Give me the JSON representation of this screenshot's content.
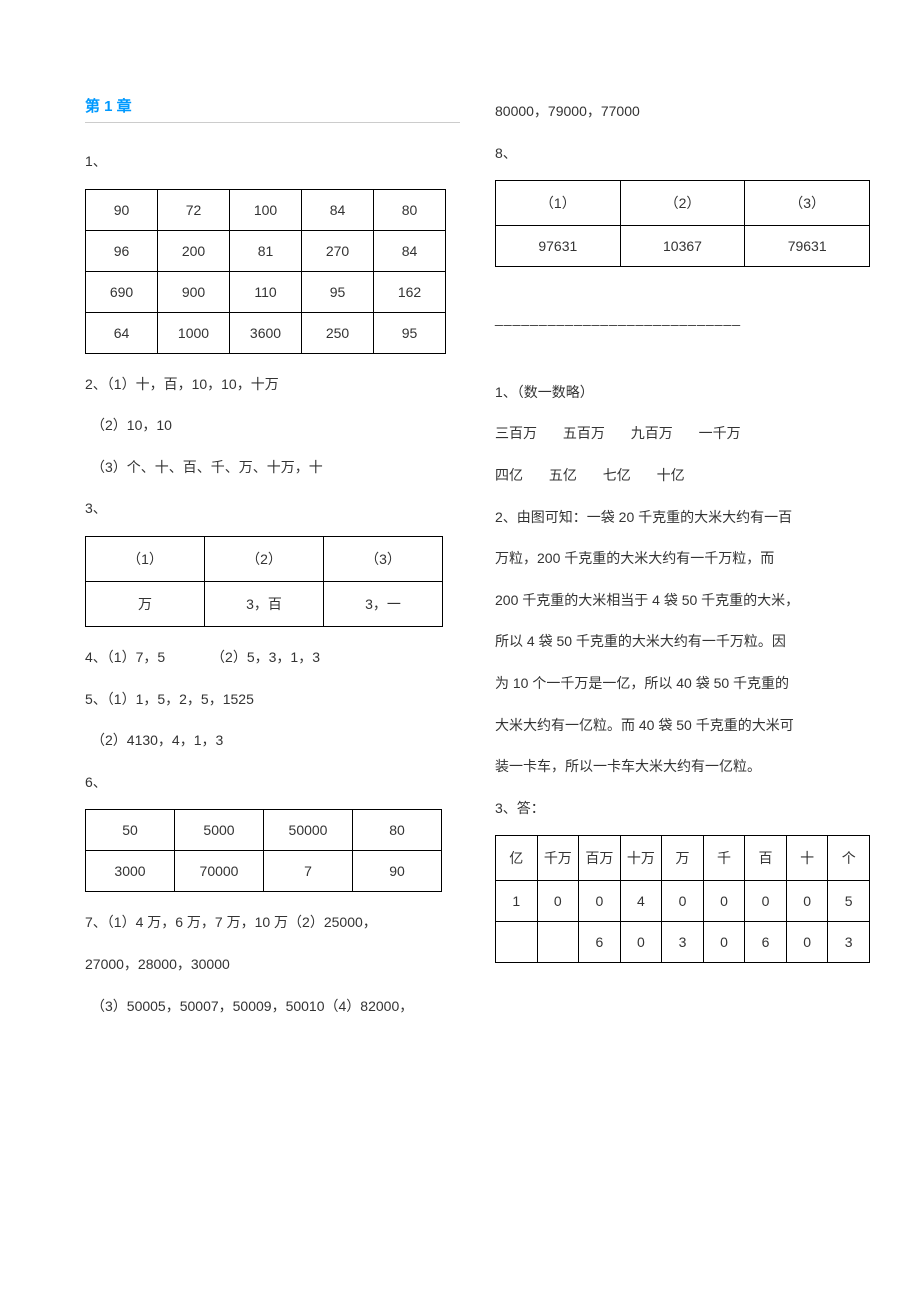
{
  "chapter_title": "第 1 章",
  "left": {
    "q1_label": "1、",
    "table1": {
      "rows": [
        [
          "90",
          "72",
          "100",
          "84",
          "80"
        ],
        [
          "96",
          "200",
          "81",
          "270",
          "84"
        ],
        [
          "690",
          "900",
          "110",
          "95",
          "162"
        ],
        [
          "64",
          "1000",
          "3600",
          "250",
          "95"
        ]
      ]
    },
    "q2_line1": "2、（1）十，百，10，10，十万",
    "q2_line2": "（2）10，10",
    "q2_line3": "（3）个、十、百、千、万、十万，十",
    "q3_label": "3、",
    "table3": {
      "header": [
        "（1）",
        "（2）",
        "（3）"
      ],
      "row": [
        "万",
        "3，百",
        "3，一"
      ]
    },
    "q4_part1": "4、（1）7，5",
    "q4_part2": "（2）5，3，1，3",
    "q5_line1": "5、（1）1，5，2，5，1525",
    "q5_line2": "（2）4130，4，1，3",
    "q6_label": "6、",
    "table6": {
      "rows": [
        [
          "50",
          "5000",
          "50000",
          "80"
        ],
        [
          "3000",
          "70000",
          "7",
          "90"
        ]
      ]
    },
    "q7_line1": "7、（1）4 万，6 万，7 万，10 万（2）25000，",
    "q7_line2": "27000，28000，30000",
    "q7_line3": "（3）50005，50007，50009，50010（4）82000，"
  },
  "right": {
    "q7_cont": "80000，79000，77000",
    "q8_label": "8、",
    "table8": {
      "header": [
        "（1）",
        "（2）",
        "（3）"
      ],
      "row": [
        "97631",
        "10367",
        "79631"
      ]
    },
    "separator": "____________________________",
    "r1_label": "1、（数一数略）",
    "r1_line2_words": [
      "三百万",
      "五百万",
      "九百万",
      "一千万"
    ],
    "r1_line3_words": [
      "四亿",
      "五亿",
      "七亿",
      "十亿"
    ],
    "r2_line1": "2、由图可知：一袋 20 千克重的大米大约有一百",
    "r2_line2": "万粒，200 千克重的大米大约有一千万粒，而",
    "r2_line3": "200 千克重的大米相当于 4 袋 50 千克重的大米，",
    "r2_line4": "所以 4 袋 50 千克重的大米大约有一千万粒。因",
    "r2_line5": "为 10 个一千万是一亿，所以 40 袋 50 千克重的",
    "r2_line6": "大米大约有一亿粒。而 40 袋 50 千克重的大米可",
    "r2_line7": " 装一卡车，所以一卡车大米大约有一亿粒。",
    "r3_label": "3、答：",
    "table_placevalue": {
      "header": [
        "亿",
        "千万",
        "百万",
        "十万",
        "万",
        "千",
        "百",
        "十",
        "个"
      ],
      "rows": [
        [
          "1",
          "0",
          "0",
          "4",
          "0",
          "0",
          "0",
          "0",
          "5"
        ],
        [
          "",
          "",
          "6",
          "0",
          "3",
          "0",
          "6",
          "0",
          "3"
        ]
      ]
    }
  }
}
